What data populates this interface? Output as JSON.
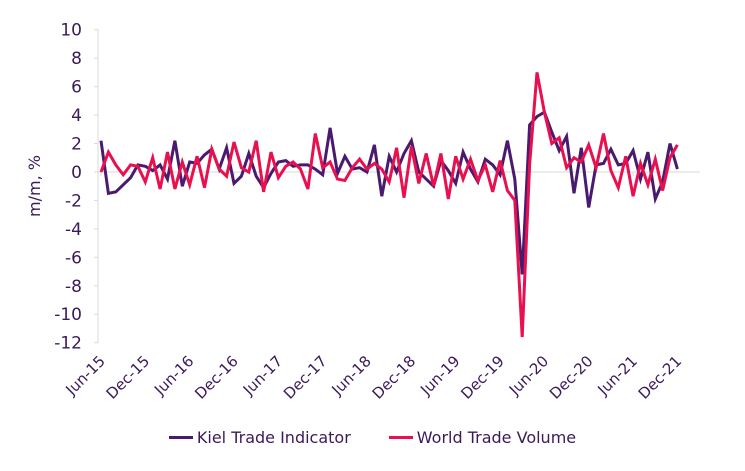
{
  "chart_data": {
    "type": "line",
    "title": "",
    "xlabel": "",
    "ylabel": "m/m, %",
    "ylim": [
      -12,
      10
    ],
    "yticks": [
      "10",
      "8",
      "6",
      "4",
      "2",
      "0",
      "-2",
      "-4",
      "-6",
      "-8",
      "-10",
      "-12"
    ],
    "ytick_values": [
      10,
      8,
      6,
      4,
      2,
      0,
      -2,
      -4,
      -6,
      -8,
      -10,
      -12
    ],
    "xtick_labels": [
      "Jun-15",
      "Dec-15",
      "Jun-16",
      "Dec-16",
      "Jun-17",
      "Dec-17",
      "Jun-18",
      "Dec-18",
      "Jun-19",
      "Dec-19",
      "Jun-20",
      "Dec-20",
      "Jun-21",
      "Dec-21"
    ],
    "x_start": "Jun-15",
    "x_end": "Dec-21",
    "frequency": "monthly",
    "grid": false,
    "legend_position": "bottom",
    "series": [
      {
        "name": "Kiel Trade Indicator",
        "color": "#4a1a6e",
        "values": [
          2.2,
          -1.5,
          -1.4,
          -0.9,
          -0.4,
          0.5,
          0.4,
          0.1,
          0.5,
          -0.5,
          2.2,
          -1.0,
          0.7,
          0.6,
          1.2,
          1.6,
          0.2,
          1.7,
          -0.8,
          -0.3,
          1.3,
          -0.3,
          -1.1,
          -0.1,
          0.7,
          0.8,
          0.4,
          0.5,
          0.5,
          0.2,
          -0.2,
          3.1,
          -0.1,
          1.1,
          0.2,
          0.3,
          0.0,
          1.9,
          -1.7,
          1.1,
          0.0,
          1.3,
          2.2,
          0.0,
          -0.5,
          -1.0,
          0.8,
          0.1,
          -0.8,
          1.4,
          0.2,
          -0.7,
          0.9,
          0.5,
          -0.2,
          2.2,
          -0.5,
          -7.2,
          3.3,
          3.9,
          4.2,
          2.8,
          1.5,
          2.5,
          -1.5,
          1.7,
          -2.5,
          0.5,
          0.6,
          1.6,
          0.5,
          0.6,
          1.5,
          -0.5,
          1.4,
          -1.9,
          -0.7,
          2.0,
          0.2
        ]
      },
      {
        "name": "World Trade Volume",
        "color": "#e8104f",
        "values": [
          0.0,
          1.4,
          0.5,
          -0.2,
          0.5,
          0.4,
          -0.7,
          1.0,
          -1.2,
          1.4,
          -1.2,
          0.7,
          -0.9,
          1.1,
          -1.1,
          1.6,
          0.2,
          -0.3,
          2.1,
          0.3,
          0.0,
          2.2,
          -1.4,
          1.4,
          -0.4,
          0.4,
          0.7,
          0.2,
          -1.2,
          2.7,
          0.3,
          0.7,
          -0.5,
          -0.6,
          0.3,
          0.9,
          0.2,
          0.6,
          0.2,
          -0.7,
          1.7,
          -1.8,
          1.8,
          -0.8,
          1.3,
          -1.0,
          1.3,
          -1.9,
          1.1,
          -0.5,
          0.9,
          -0.6,
          0.5,
          -1.4,
          0.8,
          -1.3,
          -2.0,
          -11.6,
          0.5,
          7.0,
          4.2,
          2.0,
          2.4,
          0.3,
          1.0,
          0.7,
          1.9,
          0.3,
          2.7,
          0.1,
          -1.1,
          1.1,
          -1.7,
          0.6,
          -0.9,
          0.9,
          -1.3,
          1.0,
          1.9
        ]
      }
    ]
  }
}
